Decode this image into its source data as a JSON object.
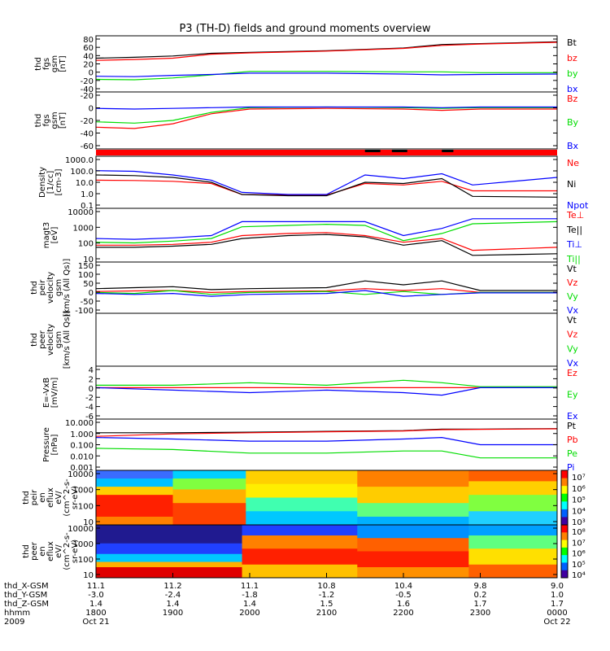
{
  "title": "P3 (TH-D) fields and ground moments overview",
  "colors": {
    "black": "#000000",
    "red": "#ff0000",
    "green": "#00dd00",
    "blue": "#0000ff"
  },
  "panels": [
    {
      "id": "fgs-gsm",
      "ylabel": [
        "thd",
        "fgs",
        "gsm",
        "[nT]"
      ],
      "ticks": [
        "80",
        "60",
        "40",
        "20",
        "0",
        "-20",
        "-40"
      ],
      "legend": [
        {
          "label": "Bt",
          "color": "black"
        },
        {
          "label": "bz",
          "color": "red"
        },
        {
          "label": "by",
          "color": "green"
        },
        {
          "label": "bx",
          "color": "blue"
        }
      ]
    },
    {
      "id": "fgs-gsm-cut",
      "ylabel": [
        "thd",
        "fgs",
        "gsm",
        "[nT]"
      ],
      "ticks": [
        "-20",
        "0",
        "-20",
        "-40",
        "-60"
      ],
      "legend": [
        {
          "label": "Bz",
          "color": "red"
        },
        {
          "label": "By",
          "color": "green"
        },
        {
          "label": "Bx",
          "color": "blue"
        }
      ]
    },
    {
      "id": "density",
      "ylabel": [
        "Density",
        "[1/cc]",
        "[cm-3]"
      ],
      "ticks": [
        "1000.0",
        "100.0",
        "10.0",
        "1.0",
        "0.1"
      ],
      "legend": [
        {
          "label": "Ne",
          "color": "red"
        },
        {
          "label": "Ni",
          "color": "black"
        },
        {
          "label": "Npot",
          "color": "blue"
        }
      ]
    },
    {
      "id": "temperature",
      "ylabel": [
        "magt3",
        "[eV]"
      ],
      "ticks": [
        "10000",
        "1000",
        "100",
        "10"
      ],
      "legend": [
        {
          "label": "Te⊥",
          "color": "red"
        },
        {
          "label": "Te||",
          "color": "black"
        },
        {
          "label": "Ti⊥",
          "color": "blue"
        },
        {
          "label": "Ti||",
          "color": "green"
        }
      ]
    },
    {
      "id": "peir-velocity",
      "ylabel": [
        "thd",
        "peir",
        "velocity",
        "gsm",
        "[km/s (All Qs)]"
      ],
      "ticks": [
        "150",
        "100",
        "50",
        "0",
        "-50",
        "-100"
      ],
      "legend": [
        {
          "label": "Vt",
          "color": "black"
        },
        {
          "label": "Vz",
          "color": "red"
        },
        {
          "label": "Vy",
          "color": "green"
        },
        {
          "label": "Vx",
          "color": "blue"
        }
      ]
    },
    {
      "id": "peer-velocity",
      "ylabel": [
        "thd",
        "peer",
        "velocity",
        "gsm",
        "[km/s (All Qs)]"
      ],
      "ticks": [],
      "legend": [
        {
          "label": "Vt",
          "color": "black"
        },
        {
          "label": "Vz",
          "color": "red"
        },
        {
          "label": "Vy",
          "color": "green"
        },
        {
          "label": "Vx",
          "color": "blue"
        }
      ]
    },
    {
      "id": "efield",
      "ylabel": [
        "E=-VxB",
        "[mV/m]"
      ],
      "ticks": [
        "4",
        "2",
        "0",
        "-2",
        "-4",
        "-6"
      ],
      "legend": [
        {
          "label": "Ez",
          "color": "red"
        },
        {
          "label": "Ey",
          "color": "green"
        },
        {
          "label": "Ex",
          "color": "blue"
        }
      ]
    },
    {
      "id": "pressure",
      "ylabel": [
        "Pressure",
        "[nPa]"
      ],
      "ticks": [
        "10.000",
        "1.000",
        "0.100",
        "0.010",
        "0.001"
      ],
      "legend": [
        {
          "label": "Pt",
          "color": "black"
        },
        {
          "label": "Pb",
          "color": "red"
        },
        {
          "label": "Pe",
          "color": "green"
        },
        {
          "label": "Pi",
          "color": "blue"
        }
      ]
    },
    {
      "id": "peir-spec",
      "ylabel": [
        "thd",
        "peir",
        "en",
        "eflux",
        "eV/",
        "(cm^2-s-",
        "sr-eV)"
      ],
      "ticks": [
        "10000",
        "1000",
        "100",
        "10"
      ],
      "colorbar": [
        "10⁷",
        "10⁶",
        "10⁵",
        "10⁴",
        "10³"
      ]
    },
    {
      "id": "peer-spec",
      "ylabel": [
        "thd",
        "peer",
        "en",
        "eflux",
        "eV/",
        "(cm^2-s-",
        "sr-eV)"
      ],
      "ticks": [
        "10000",
        "1000",
        "100",
        "10"
      ],
      "colorbar": [
        "10⁸",
        "10⁷",
        "10⁶",
        "10⁵",
        "10⁴"
      ]
    }
  ],
  "xaxis": {
    "labels": [
      "thd_X-GSM",
      "thd_Y-GSM",
      "thd_Z-GSM",
      "hhmm",
      "2009"
    ],
    "columns": [
      [
        "11.1",
        "-3.0",
        "1.4",
        "1800",
        "Oct 21"
      ],
      [
        "11.2",
        "-2.4",
        "1.4",
        "1900",
        ""
      ],
      [
        "11.1",
        "-1.8",
        "1.4",
        "2000",
        ""
      ],
      [
        "10.8",
        "-1.2",
        "1.5",
        "2100",
        ""
      ],
      [
        "10.4",
        "-0.5",
        "1.6",
        "2200",
        ""
      ],
      [
        "9.8",
        "0.2",
        "1.7",
        "2300",
        ""
      ],
      [
        "9.0",
        "1.0",
        "1.7",
        "0000",
        "Oct 22"
      ]
    ]
  },
  "chart_data": {
    "type": "line",
    "title": "P3 (TH-D) fields and ground moments overview",
    "time_range": [
      "2009-10-21 18:00",
      "2009-10-22 00:00"
    ],
    "panels": [
      {
        "name": "thd fgs gsm [nT]",
        "ylim": [
          -40,
          80
        ],
        "series": [
          {
            "name": "Bt",
            "x": [
              18.0,
              18.5,
              19.0,
              19.5,
              20.0,
              21.0,
              22.0,
              22.5,
              23.0,
              24.0
            ],
            "values": [
              33,
              35,
              38,
              44,
              46,
              50,
              56,
              64,
              66,
              70
            ]
          },
          {
            "name": "bz",
            "x": [
              18.0,
              18.5,
              19.0,
              19.5,
              20.0,
              21.0,
              22.0,
              22.5,
              23.0,
              24.0
            ],
            "values": [
              28,
              30,
              33,
              42,
              45,
              49,
              55,
              62,
              65,
              69
            ]
          },
          {
            "name": "by",
            "x": [
              18.0,
              18.5,
              19.0,
              19.5,
              20.0,
              21.0,
              22.0,
              22.5,
              23.0,
              24.0
            ],
            "values": [
              -15,
              -16,
              -12,
              -5,
              3,
              3,
              2,
              2,
              0,
              0
            ]
          },
          {
            "name": "bx",
            "x": [
              18.0,
              18.5,
              19.0,
              19.5,
              20.0,
              21.0,
              22.0,
              22.5,
              23.0,
              24.0
            ],
            "values": [
              -8,
              -9,
              -6,
              -4,
              -1,
              -1,
              -3,
              -5,
              -4,
              -3
            ]
          }
        ]
      },
      {
        "name": "thd fgs gsm [nT]",
        "ylim": [
          -60,
          20
        ],
        "series": [
          {
            "name": "Bz",
            "x": [
              18.0,
              18.5,
              19.0,
              19.5,
              20.0,
              21.0,
              22.0,
              22.5,
              23.0,
              24.0
            ],
            "values": [
              -30,
              -32,
              -25,
              -10,
              -3,
              -2,
              -3,
              -5,
              -3,
              -3
            ]
          },
          {
            "name": "By",
            "x": [
              18.0,
              18.5,
              19.0,
              19.5,
              20.0,
              21.0,
              22.0,
              22.5,
              23.0,
              24.0
            ],
            "values": [
              -22,
              -24,
              -20,
              -8,
              -1,
              0,
              -1,
              -2,
              -1,
              -1
            ]
          },
          {
            "name": "Bx",
            "x": [
              18.0,
              18.5,
              19.0,
              19.5,
              20.0,
              21.0,
              22.0,
              22.5,
              23.0,
              24.0
            ],
            "values": [
              -2,
              -3,
              -2,
              -1,
              0,
              0,
              0,
              -1,
              0,
              0
            ]
          }
        ]
      },
      {
        "name": "Density [1/cc] [cm-3]",
        "ylim": [
          0.1,
          1000
        ],
        "yscale": "log",
        "series": [
          {
            "name": "Ne",
            "x": [
              18.0,
              18.5,
              19.0,
              19.5,
              19.9,
              20.5,
              21.0,
              21.5,
              22.0,
              22.5,
              22.9,
              24.0
            ],
            "values": [
              15,
              14,
              12,
              8,
              1,
              0.9,
              0.9,
              8,
              6,
              12,
              2,
              2
            ]
          },
          {
            "name": "Ni",
            "x": [
              18.0,
              18.5,
              19.0,
              19.5,
              19.9,
              20.5,
              21.0,
              21.5,
              22.0,
              22.5,
              22.9,
              24.0
            ],
            "values": [
              40,
              35,
              25,
              10,
              1,
              0.8,
              0.8,
              10,
              8,
              20,
              0.7,
              0.6
            ]
          },
          {
            "name": "Npot",
            "x": [
              18.0,
              18.5,
              19.0,
              19.5,
              19.9,
              20.5,
              21.0,
              21.5,
              22.0,
              22.5,
              22.9,
              24.0
            ],
            "values": [
              90,
              80,
              40,
              15,
              1.5,
              1,
              1,
              40,
              20,
              50,
              6,
              25
            ]
          }
        ]
      },
      {
        "name": "magt3 [eV]",
        "ylim": [
          10,
          10000
        ],
        "yscale": "log",
        "series": [
          {
            "name": "Te⊥",
            "x": [
              18.0,
              18.5,
              19.0,
              19.5,
              19.9,
              20.5,
              21.0,
              21.5,
              22.0,
              22.5,
              22.9,
              24.0
            ],
            "values": [
              80,
              80,
              90,
              120,
              300,
              400,
              450,
              300,
              120,
              200,
              40,
              60
            ]
          },
          {
            "name": "Te||",
            "x": [
              18.0,
              18.5,
              19.0,
              19.5,
              19.9,
              20.5,
              21.0,
              21.5,
              22.0,
              22.5,
              22.9,
              24.0
            ],
            "values": [
              60,
              60,
              70,
              90,
              200,
              300,
              350,
              250,
              80,
              150,
              20,
              25
            ]
          },
          {
            "name": "Ti⊥",
            "x": [
              18.0,
              18.5,
              19.0,
              19.5,
              19.9,
              20.5,
              21.0,
              21.5,
              22.0,
              22.5,
              22.9,
              24.0
            ],
            "values": [
              200,
              180,
              220,
              300,
              2000,
              2000,
              2000,
              2000,
              300,
              800,
              3000,
              3000
            ]
          },
          {
            "name": "Ti||",
            "x": [
              18.0,
              18.5,
              19.0,
              19.5,
              19.9,
              20.5,
              21.0,
              21.5,
              22.0,
              22.5,
              22.9,
              24.0
            ],
            "values": [
              120,
              110,
              140,
              200,
              1000,
              1200,
              1400,
              1200,
              150,
              400,
              1500,
              2000
            ]
          }
        ]
      },
      {
        "name": "thd peir velocity gsm [km/s (All Qs)]",
        "ylim": [
          -100,
          150
        ],
        "series": [
          {
            "name": "Vt",
            "x": [
              18.0,
              18.5,
              19.0,
              19.5,
              20.0,
              21.0,
              21.5,
              22.0,
              22.5,
              23.0,
              24.0
            ],
            "values": [
              20,
              25,
              30,
              15,
              20,
              25,
              60,
              40,
              60,
              10,
              10
            ]
          },
          {
            "name": "Vz",
            "x": [
              18.0,
              18.5,
              19.0,
              19.5,
              20.0,
              21.0,
              21.5,
              22.0,
              22.5,
              23.0,
              24.0
            ],
            "values": [
              5,
              8,
              10,
              0,
              5,
              8,
              20,
              10,
              20,
              0,
              0
            ]
          },
          {
            "name": "Vy",
            "x": [
              18.0,
              18.5,
              19.0,
              19.5,
              20.0,
              21.0,
              21.5,
              22.0,
              22.5,
              23.0,
              24.0
            ],
            "values": [
              0,
              -5,
              10,
              -10,
              0,
              5,
              -10,
              5,
              -10,
              0,
              0
            ]
          },
          {
            "name": "Vx",
            "x": [
              18.0,
              18.5,
              19.0,
              19.5,
              20.0,
              21.0,
              21.5,
              22.0,
              22.5,
              23.0,
              24.0
            ],
            "values": [
              -5,
              -10,
              -5,
              -20,
              -10,
              -5,
              10,
              -20,
              -10,
              -2,
              -2
            ]
          }
        ]
      },
      {
        "name": "thd peer velocity gsm [km/s (All Qs)]",
        "series": []
      },
      {
        "name": "E=-VxB [mV/m]",
        "ylim": [
          -6,
          4
        ],
        "series": [
          {
            "name": "Ez",
            "x": [
              18.0,
              19.0,
              20.0,
              21.0,
              22.0,
              22.5,
              23.0,
              24.0
            ],
            "values": [
              0,
              0,
              0,
              0,
              0,
              0,
              0,
              0
            ]
          },
          {
            "name": "Ey",
            "x": [
              18.0,
              19.0,
              20.0,
              21.0,
              22.0,
              22.5,
              23.0,
              24.0
            ],
            "values": [
              0.5,
              0.5,
              1,
              0.5,
              1.5,
              1,
              0.2,
              0.2
            ]
          },
          {
            "name": "Ex",
            "x": [
              18.0,
              19.0,
              20.0,
              21.0,
              22.0,
              22.5,
              23.0,
              24.0
            ],
            "values": [
              0,
              -0.5,
              -1,
              -0.5,
              -1,
              -1.5,
              0,
              0
            ]
          }
        ]
      },
      {
        "name": "Pressure [nPa]",
        "ylim": [
          0.001,
          10
        ],
        "yscale": "log",
        "series": [
          {
            "name": "Pt",
            "x": [
              18.0,
              19.0,
              20.0,
              21.0,
              22.0,
              22.5,
              23.0,
              24.0
            ],
            "values": [
              1.0,
              1.0,
              1.1,
              1.3,
              1.5,
              2.0,
              2.0,
              2.2
            ]
          },
          {
            "name": "Pb",
            "x": [
              18.0,
              19.0,
              20.0,
              21.0,
              22.0,
              22.5,
              23.0,
              24.0
            ],
            "values": [
              0.5,
              0.8,
              1.0,
              1.2,
              1.4,
              1.8,
              1.9,
              2.1
            ]
          },
          {
            "name": "Pe",
            "x": [
              18.0,
              19.0,
              20.0,
              21.0,
              22.0,
              22.5,
              23.0,
              24.0
            ],
            "values": [
              0.05,
              0.04,
              0.02,
              0.02,
              0.03,
              0.03,
              0.008,
              0.008
            ]
          },
          {
            "name": "Pi",
            "x": [
              18.0,
              19.0,
              20.0,
              21.0,
              22.0,
              22.5,
              23.0,
              24.0
            ],
            "values": [
              0.4,
              0.3,
              0.2,
              0.2,
              0.3,
              0.4,
              0.1,
              0.1
            ]
          }
        ]
      }
    ]
  }
}
